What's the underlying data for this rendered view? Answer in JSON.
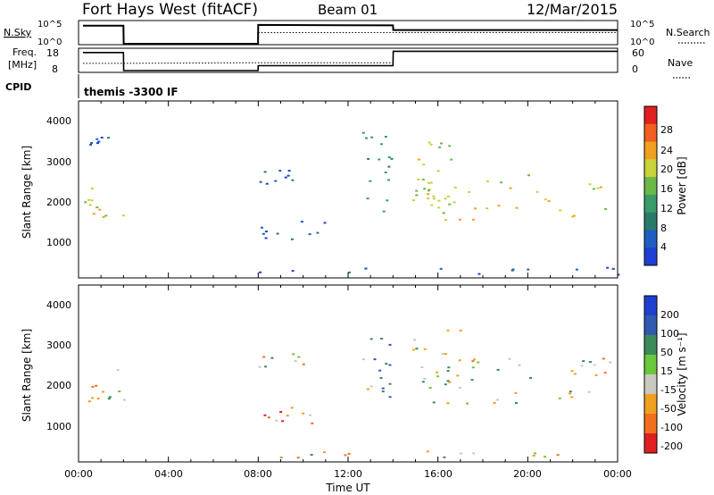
{
  "header": {
    "station": "Fort Hays West (fitACF)",
    "beam": "Beam 01",
    "date": "12/Mar/2015"
  },
  "top_panels": {
    "nsky": {
      "label": "N.Sky",
      "ticks": [
        "10^5",
        "10^0"
      ],
      "right_label": "N.Search",
      "right_ticks": [
        "10^5",
        "10^0"
      ]
    },
    "freq": {
      "label_line1": "Freq.",
      "label_line2": "[MHz]",
      "ticks": [
        "18",
        "8"
      ],
      "right_label": "Nave",
      "right_ticks": [
        "60",
        "0"
      ]
    },
    "cpid": {
      "label": "CPID",
      "value": "themis -3300 IF"
    }
  },
  "power_panel": {
    "ylabel": "Slant Range [km]",
    "yticks": [
      "4000",
      "3000",
      "2000",
      "1000"
    ],
    "colorbar_label": "Power [dB]",
    "colorbar_ticks": [
      "28",
      "24",
      "20",
      "16",
      "12",
      "8",
      "4"
    ]
  },
  "velocity_panel": {
    "ylabel": "Slant Range [km]",
    "yticks": [
      "4000",
      "3000",
      "2000",
      "1000"
    ],
    "colorbar_label": "Velocity [m s⁻¹]",
    "colorbar_ticks": [
      "200",
      "100",
      "50",
      "15",
      "-15",
      "-50",
      "-100",
      "-200"
    ]
  },
  "xaxis": {
    "label": "Time UT",
    "ticks": [
      "00:00",
      "04:00",
      "08:00",
      "12:00",
      "16:00",
      "20:00",
      "00:00"
    ]
  },
  "colors": {
    "power_scale": [
      "#1f3fd0",
      "#1f5ec0",
      "#2a7a6a",
      "#3a9a6a",
      "#6ab84a",
      "#c8d23a",
      "#f0a020",
      "#f06020",
      "#e02020"
    ],
    "velocity_scale": [
      "#1f3fd0",
      "#2f5ab0",
      "#3a8a5a",
      "#6ac83a",
      "#c8c8c0",
      "#f0a020",
      "#f07020",
      "#e02020"
    ]
  },
  "chart_data": [
    {
      "type": "line",
      "title": "N.Sky / N.Search",
      "x_unit": "hours UT",
      "xlim": [
        0,
        24
      ],
      "series": [
        {
          "name": "N.Sky",
          "x": [
            0.2,
            2.0,
            2.01,
            7.99,
            8.0,
            14.0,
            14.01,
            24.0
          ],
          "values": [
            4.2,
            4.2,
            0,
            0,
            4.4,
            4.3,
            3.2,
            3.2
          ]
        },
        {
          "name": "N.Search",
          "x": [
            8.0,
            24.0
          ],
          "values": [
            2.6,
            2.6
          ]
        }
      ]
    },
    {
      "type": "line",
      "title": "Freq / Nave",
      "x_unit": "hours UT",
      "xlim": [
        0,
        24
      ],
      "series": [
        {
          "name": "Freq.",
          "x": [
            0.2,
            2.0,
            2.01,
            7.99,
            8.0,
            14.0,
            14.01,
            24.0
          ],
          "values": [
            17.2,
            17.2,
            8,
            8,
            10.5,
            10.5,
            17.8,
            17.8
          ]
        },
        {
          "name": "Nave",
          "x": [
            0.2,
            2.0,
            8.0,
            14.0
          ],
          "values": [
            22,
            22,
            24,
            24
          ]
        }
      ]
    },
    {
      "type": "heatmap",
      "title": "Power [dB]",
      "xlabel": "Time UT",
      "ylabel": "Slant Range [km]",
      "x_unit": "hours UT",
      "xlim": [
        0,
        24
      ],
      "ylim": [
        0,
        4500
      ],
      "clim": [
        0,
        30
      ],
      "regions": [
        {
          "t0": 0.1,
          "t1": 2.0,
          "r0": 1500,
          "r1": 2400,
          "level": 18
        },
        {
          "t0": 0.4,
          "t1": 1.3,
          "r0": 3400,
          "r1": 3600,
          "level": 4
        },
        {
          "t0": 8.0,
          "t1": 10.0,
          "r0": 2400,
          "r1": 2800,
          "level": 5
        },
        {
          "t0": 8.0,
          "t1": 11.5,
          "r0": 1000,
          "r1": 1500,
          "level": 5
        },
        {
          "t0": 12.6,
          "t1": 13.9,
          "r0": 1600,
          "r1": 3800,
          "level": 12
        },
        {
          "t0": 14.8,
          "t1": 17.0,
          "r0": 1900,
          "r1": 3500,
          "level": 17
        },
        {
          "t0": 15.5,
          "t1": 24.0,
          "r0": 1500,
          "r1": 2700,
          "level": 18
        },
        {
          "t0": 8.0,
          "t1": 24.0,
          "r0": 100,
          "r1": 300,
          "level": 4
        }
      ]
    },
    {
      "type": "heatmap",
      "title": "Velocity [m s-1]",
      "xlabel": "Time UT",
      "ylabel": "Slant Range [km]",
      "x_unit": "hours UT",
      "xlim": [
        0,
        24
      ],
      "ylim": [
        0,
        4500
      ],
      "clim": [
        -250,
        250
      ],
      "regions": [
        {
          "t0": 0.1,
          "t1": 2.0,
          "r0": 1500,
          "r1": 2400,
          "level": 0
        },
        {
          "t0": 8.0,
          "t1": 10.0,
          "r0": 2400,
          "r1": 2800,
          "level": -10
        },
        {
          "t0": 8.0,
          "t1": 11.5,
          "r0": 1000,
          "r1": 1500,
          "level": -60
        },
        {
          "t0": 12.6,
          "t1": 13.9,
          "r0": 1600,
          "r1": 3800,
          "level": 40
        },
        {
          "t0": 14.8,
          "t1": 17.0,
          "r0": 1900,
          "r1": 3500,
          "level": 0
        },
        {
          "t0": 15.5,
          "t1": 24.0,
          "r0": 1500,
          "r1": 2700,
          "level": 0
        },
        {
          "t0": 8.0,
          "t1": 24.0,
          "r0": 100,
          "r1": 300,
          "level": -20
        }
      ]
    }
  ]
}
